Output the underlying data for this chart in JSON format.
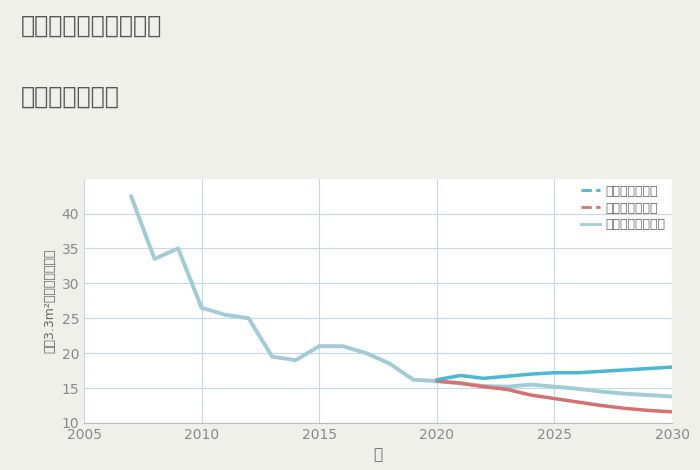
{
  "title_line1": "福岡県糸島市篠原西の",
  "title_line2": "土地の価格推移",
  "xlabel": "年",
  "ylabel": "坪（3.3m²）単価（万円）",
  "bg_color": "#f0f0eb",
  "plot_bg_color": "#ffffff",
  "grid_color": "#c5d8e8",
  "title_color": "#555555",
  "label_color": "#666666",
  "tick_color": "#888888",
  "xlim": [
    2005,
    2030
  ],
  "ylim": [
    10,
    45
  ],
  "yticks": [
    10,
    15,
    20,
    25,
    30,
    35,
    40
  ],
  "xticks": [
    2005,
    2010,
    2015,
    2020,
    2025,
    2030
  ],
  "good_scenario": {
    "label": "グッドシナリオ",
    "color": "#4ab8d5",
    "linewidth": 2.5,
    "years": [
      2020,
      2021,
      2022,
      2023,
      2024,
      2025,
      2026,
      2027,
      2028,
      2029,
      2030
    ],
    "values": [
      16.2,
      16.8,
      16.4,
      16.7,
      17.0,
      17.2,
      17.2,
      17.4,
      17.6,
      17.8,
      18.0
    ]
  },
  "bad_scenario": {
    "label": "バッドシナリオ",
    "color": "#d97070",
    "linewidth": 2.5,
    "years": [
      2020,
      2021,
      2022,
      2023,
      2024,
      2025,
      2026,
      2027,
      2028,
      2029,
      2030
    ],
    "values": [
      16.0,
      15.7,
      15.2,
      14.8,
      14.0,
      13.5,
      13.0,
      12.5,
      12.1,
      11.8,
      11.6
    ]
  },
  "normal_scenario": {
    "label": "ノーマルシナリオ",
    "color": "#a0ccd8",
    "linewidth": 2.8,
    "years": [
      2007,
      2008,
      2009,
      2010,
      2011,
      2012,
      2013,
      2014,
      2015,
      2016,
      2017,
      2018,
      2019,
      2020,
      2021,
      2022,
      2023,
      2024,
      2025,
      2026,
      2027,
      2028,
      2029,
      2030
    ],
    "values": [
      42.5,
      33.5,
      35.0,
      26.5,
      25.5,
      25.0,
      19.5,
      19.0,
      21.0,
      21.0,
      20.0,
      18.5,
      16.2,
      16.0,
      15.7,
      15.3,
      15.2,
      15.5,
      15.2,
      14.9,
      14.5,
      14.2,
      14.0,
      13.8
    ]
  }
}
